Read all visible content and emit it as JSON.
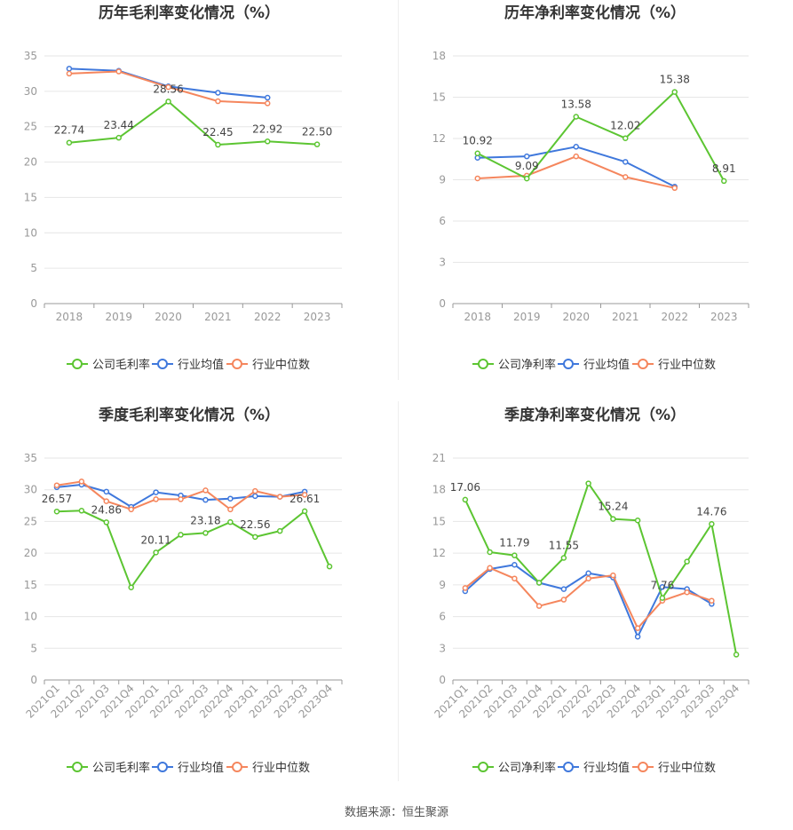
{
  "colors": {
    "company": "#5cc532",
    "industry_avg": "#3f78dc",
    "industry_median": "#f5865d",
    "grid": "#e6e6e6",
    "axis": "#999999",
    "tick": "#999999",
    "title": "#333333"
  },
  "legend": {
    "company_gross": "公司毛利率",
    "company_net": "公司净利率",
    "industry_avg": "行业均值",
    "industry_median": "行业中位数"
  },
  "source": "数据来源：恒生聚源",
  "chart_data": [
    {
      "id": "annual-gross",
      "type": "line",
      "title": "历年毛利率变化情况（%）",
      "categories": [
        "2018",
        "2019",
        "2020",
        "2021",
        "2022",
        "2023"
      ],
      "ylim": [
        0,
        35
      ],
      "yticks": [
        0,
        5,
        10,
        15,
        20,
        25,
        30,
        35
      ],
      "series": [
        {
          "key": "industry_avg",
          "name": "行业均值",
          "values": [
            33.2,
            32.9,
            30.7,
            29.8,
            29.1,
            null
          ],
          "labels": []
        },
        {
          "key": "industry_median",
          "name": "行业中位数",
          "values": [
            32.5,
            32.8,
            30.6,
            28.6,
            28.3,
            null
          ],
          "labels": []
        },
        {
          "key": "company",
          "name": "公司毛利率",
          "values": [
            22.74,
            23.44,
            28.56,
            22.45,
            22.92,
            22.5
          ],
          "labels": [
            "22.74",
            "23.44",
            "28.56",
            "22.45",
            "22.92",
            "22.50"
          ]
        }
      ]
    },
    {
      "id": "annual-net",
      "type": "line",
      "title": "历年净利率变化情况（%）",
      "categories": [
        "2018",
        "2019",
        "2020",
        "2021",
        "2022",
        "2023"
      ],
      "ylim": [
        0,
        18
      ],
      "yticks": [
        0,
        3,
        6,
        9,
        12,
        15,
        18
      ],
      "series": [
        {
          "key": "industry_avg",
          "name": "行业均值",
          "values": [
            10.6,
            10.7,
            11.4,
            10.3,
            8.5,
            null
          ],
          "labels": []
        },
        {
          "key": "industry_median",
          "name": "行业中位数",
          "values": [
            9.1,
            9.3,
            10.7,
            9.2,
            8.4,
            null
          ],
          "labels": []
        },
        {
          "key": "company",
          "name": "公司净利率",
          "values": [
            10.92,
            9.09,
            13.58,
            12.02,
            15.38,
            8.91
          ],
          "labels": [
            "10.92",
            "9.09",
            "13.58",
            "12.02",
            "15.38",
            "8.91"
          ]
        }
      ]
    },
    {
      "id": "quarterly-gross",
      "type": "line",
      "title": "季度毛利率变化情况（%）",
      "categories": [
        "2021Q1",
        "2021Q2",
        "2021Q3",
        "2021Q4",
        "2022Q1",
        "2022Q2",
        "2022Q3",
        "2022Q4",
        "2023Q1",
        "2023Q2",
        "2023Q3",
        "2023Q4"
      ],
      "ylim": [
        0,
        35
      ],
      "yticks": [
        0,
        5,
        10,
        15,
        20,
        25,
        30,
        35
      ],
      "series": [
        {
          "key": "industry_avg",
          "name": "行业均值",
          "values": [
            30.4,
            30.8,
            29.7,
            27.3,
            29.6,
            29.1,
            28.4,
            28.6,
            29.0,
            28.9,
            29.7,
            null
          ],
          "labels": []
        },
        {
          "key": "industry_median",
          "name": "行业中位数",
          "values": [
            30.7,
            31.3,
            28.2,
            26.9,
            28.5,
            28.5,
            29.9,
            26.9,
            29.8,
            28.9,
            29.2,
            null
          ],
          "labels": []
        },
        {
          "key": "company",
          "name": "公司毛利率",
          "values": [
            26.57,
            26.7,
            24.86,
            14.6,
            20.11,
            22.9,
            23.18,
            24.9,
            22.56,
            23.5,
            26.61,
            17.9
          ],
          "labels": [
            "26.57",
            "",
            "24.86",
            "",
            "20.11",
            "",
            "23.18",
            "",
            "22.56",
            "",
            "26.61",
            ""
          ]
        }
      ]
    },
    {
      "id": "quarterly-net",
      "type": "line",
      "title": "季度净利率变化情况（%）",
      "categories": [
        "2021Q1",
        "2021Q2",
        "2021Q3",
        "2021Q4",
        "2022Q1",
        "2022Q2",
        "2022Q3",
        "2022Q4",
        "2023Q1",
        "2023Q2",
        "2023Q3",
        "2023Q4"
      ],
      "ylim": [
        0,
        21
      ],
      "yticks": [
        0,
        3,
        6,
        9,
        12,
        15,
        18,
        21
      ],
      "series": [
        {
          "key": "industry_avg",
          "name": "行业均值",
          "values": [
            8.4,
            10.5,
            10.9,
            9.2,
            8.6,
            10.1,
            9.7,
            4.1,
            8.8,
            8.6,
            7.2,
            null
          ],
          "labels": []
        },
        {
          "key": "industry_median",
          "name": "行业中位数",
          "values": [
            8.7,
            10.6,
            9.6,
            7.0,
            7.6,
            9.6,
            9.9,
            4.9,
            7.5,
            8.3,
            7.5,
            null
          ],
          "labels": []
        },
        {
          "key": "company",
          "name": "公司净利率",
          "values": [
            17.06,
            12.1,
            11.79,
            9.2,
            11.55,
            18.6,
            15.24,
            15.1,
            7.76,
            11.2,
            14.76,
            2.4
          ],
          "labels": [
            "17.06",
            "",
            "11.79",
            "",
            "11.55",
            "",
            "15.24",
            "",
            "7.76",
            "",
            "14.76",
            ""
          ]
        }
      ]
    }
  ]
}
